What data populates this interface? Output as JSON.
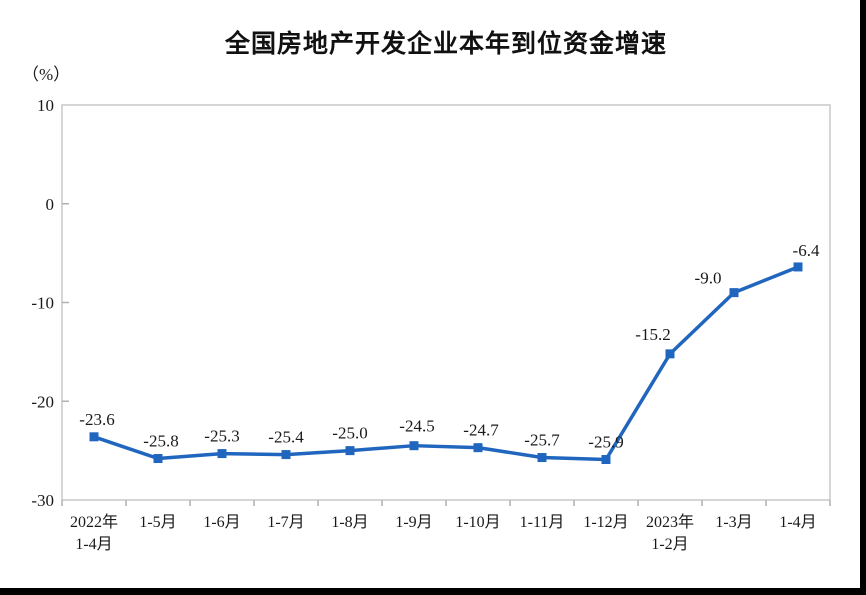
{
  "page": {
    "background": "#ffffff",
    "frame_border_color": "#000000"
  },
  "chart_data": {
    "type": "line",
    "title": "全国房地产开发企业本年到位资金增速",
    "unit_label": "（%）",
    "categories": [
      "2022年\n1-4月",
      "1-5月",
      "1-6月",
      "1-7月",
      "1-8月",
      "1-9月",
      "1-10月",
      "1-11月",
      "1-12月",
      "2023年\n1-2月",
      "1-3月",
      "1-4月"
    ],
    "values": [
      -23.6,
      -25.8,
      -25.3,
      -25.4,
      -25.0,
      -24.5,
      -24.7,
      -25.7,
      -25.9,
      -15.2,
      -9.0,
      -6.4
    ],
    "data_labels": [
      "-23.6",
      "-25.8",
      "-25.3",
      "-25.4",
      "-25.0",
      "-24.5",
      "-24.7",
      "-25.7",
      "-25.9",
      "-15.2",
      "-9.0",
      "-6.4"
    ],
    "yticks": [
      10,
      0,
      -10,
      -20,
      -30
    ],
    "ylim": [
      -30,
      10
    ],
    "grid": false,
    "legend": false,
    "series_name": "全国房地产开发企业本年到位资金增速",
    "colors": {
      "line": "#2166BE",
      "marker": "#2166BE",
      "plot_border": "#c9c9c9",
      "tick": "#b0b0b0",
      "text": "#1a1a1a"
    }
  }
}
